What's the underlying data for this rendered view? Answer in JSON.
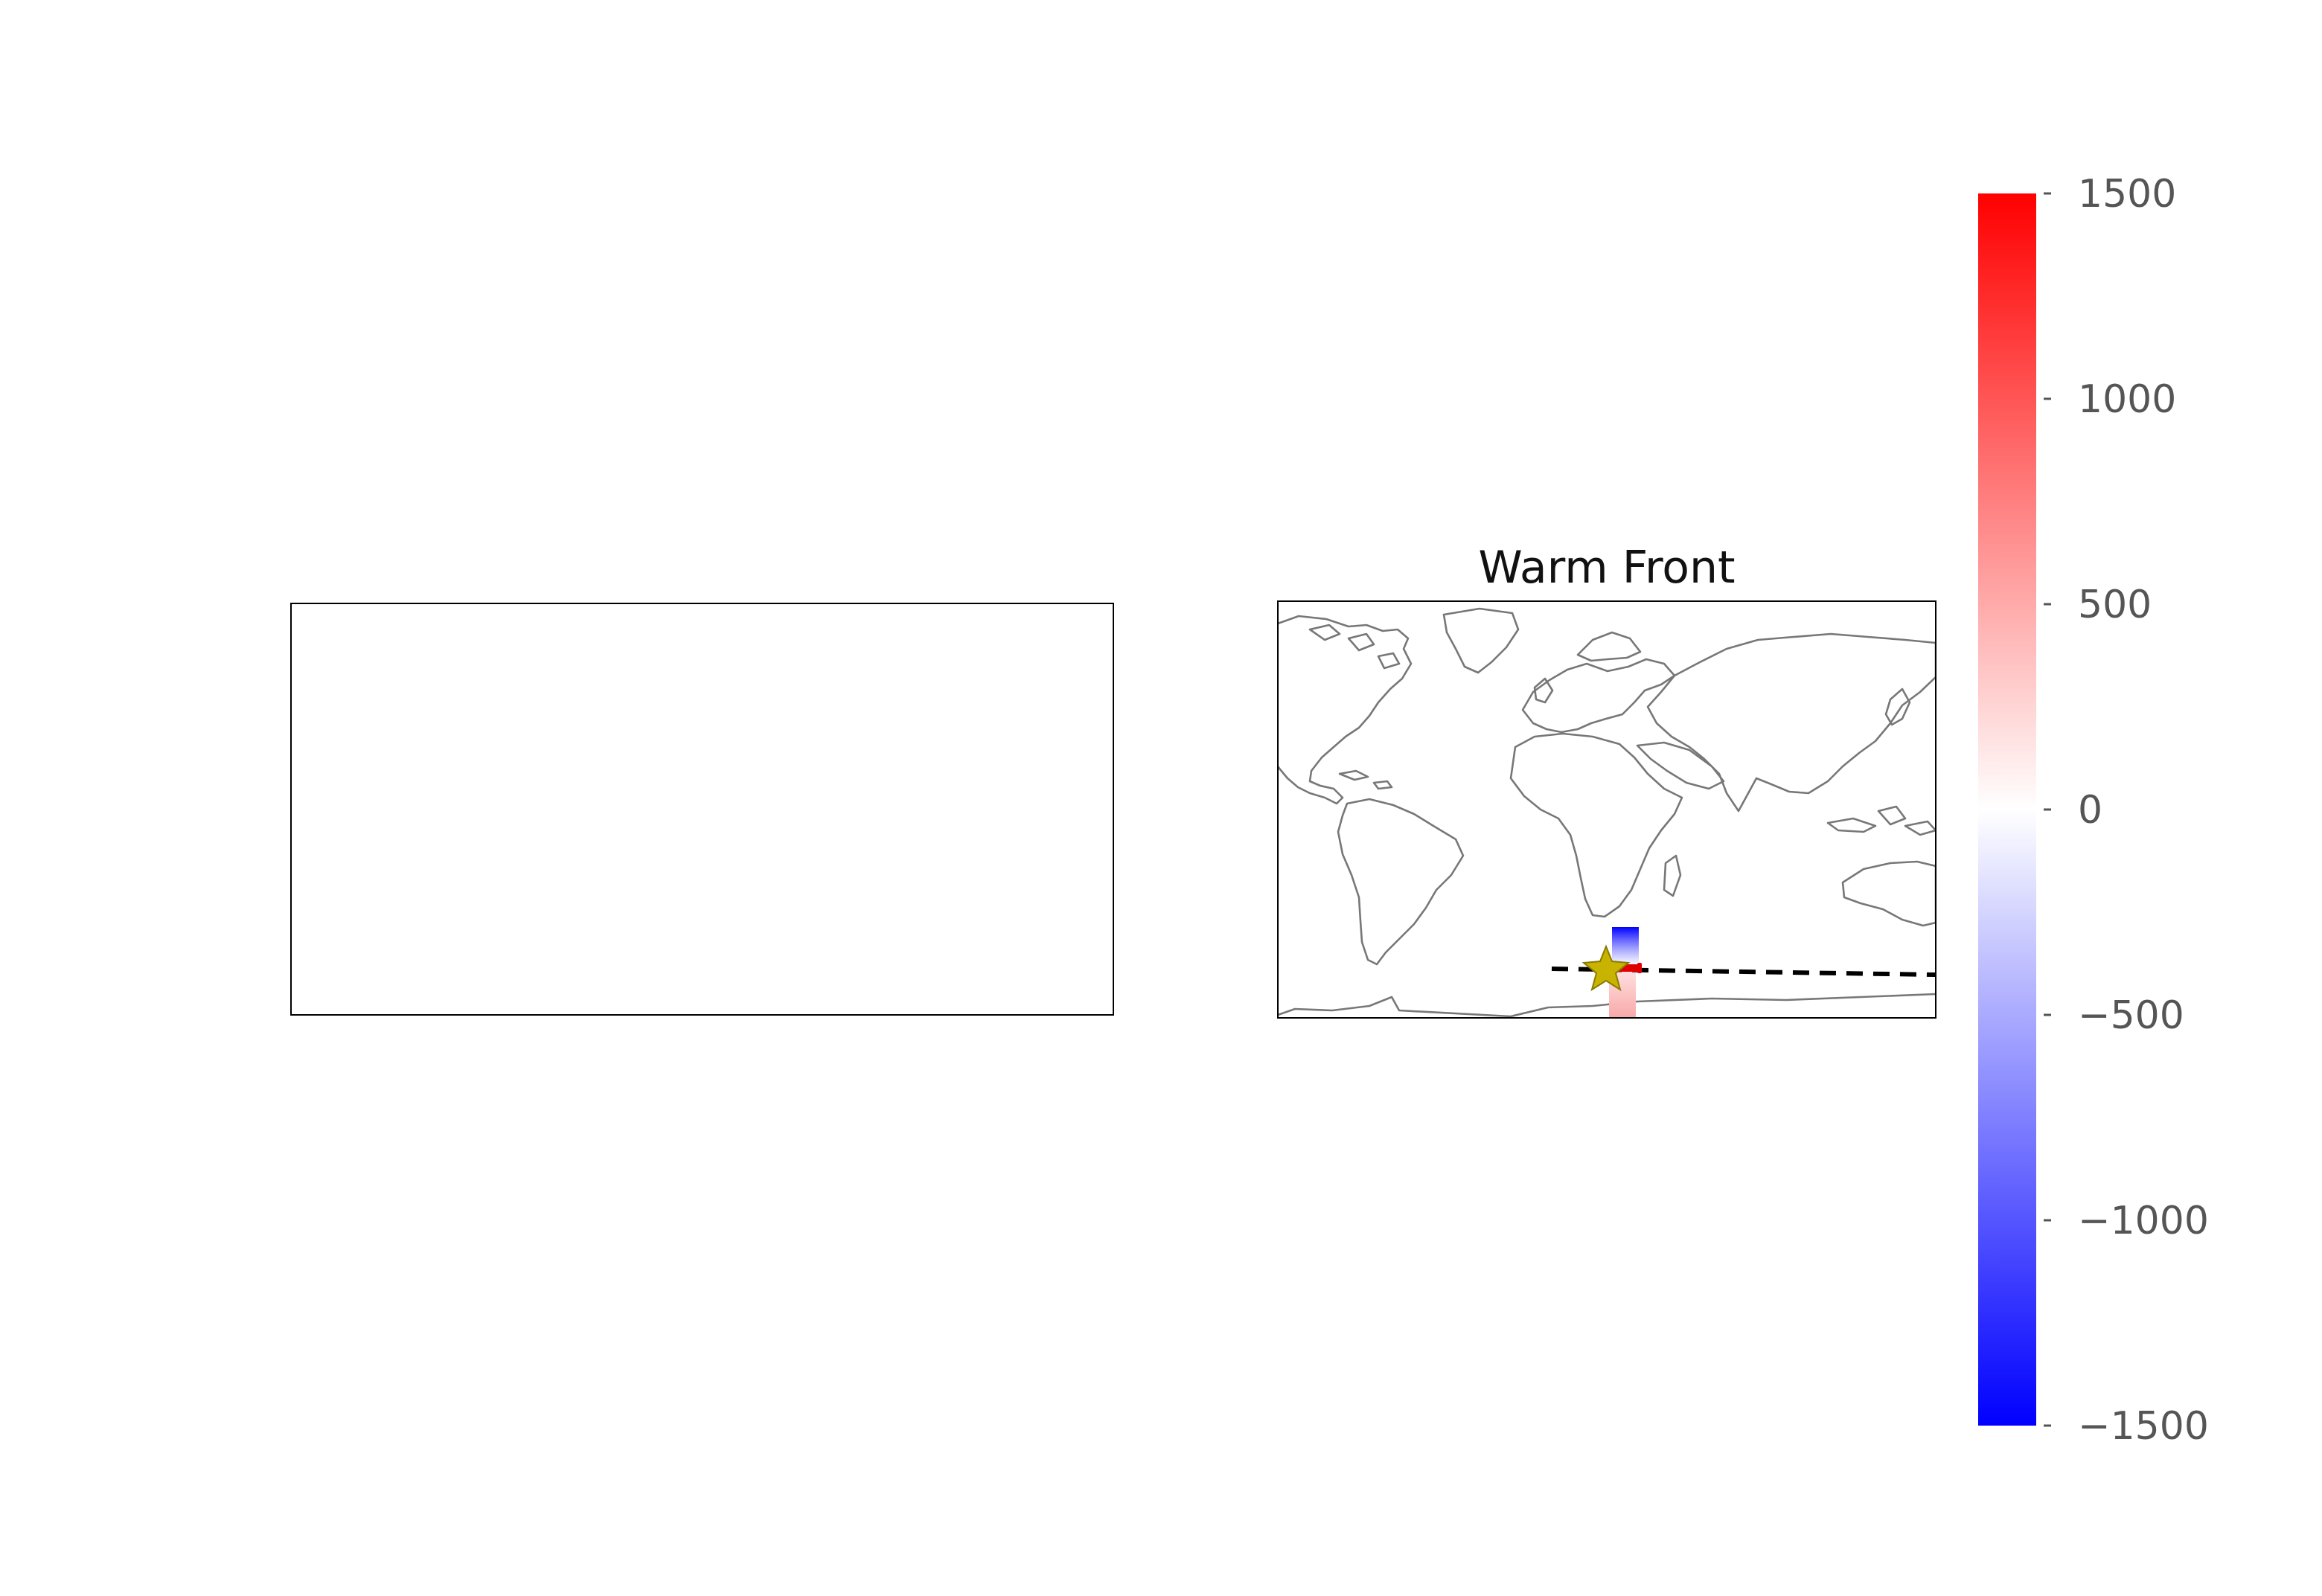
{
  "figure": {
    "left_panel": {
      "title": "",
      "content": "empty"
    },
    "right_panel": {
      "title": "Warm Front",
      "basemap": "world coastlines, equirectangular",
      "front_line": {
        "style": "dashed",
        "color": "#000000"
      },
      "marker": {
        "shape": "star",
        "icon": "star-icon",
        "fill": "#c8b400",
        "edge": "#8a7a00"
      },
      "field_patch": {
        "colormap": "bwr"
      }
    },
    "colorbar": {
      "colormap": "bwr",
      "colors": {
        "low": "#0000ff",
        "mid": "#ffffff",
        "high": "#ff0000"
      },
      "range": [
        -1500,
        1500
      ],
      "ticks": [
        "1500",
        "1000",
        "500",
        "0",
        "−500",
        "−1000",
        "−1500"
      ]
    }
  },
  "chart_data": {
    "type": "heatmap",
    "title": "Warm Front",
    "colorbar_range": [
      -1500,
      1500
    ],
    "colorbar_ticks": [
      1500,
      1000,
      500,
      0,
      -500,
      -1000,
      -1500
    ],
    "colormap": "bwr"
  }
}
